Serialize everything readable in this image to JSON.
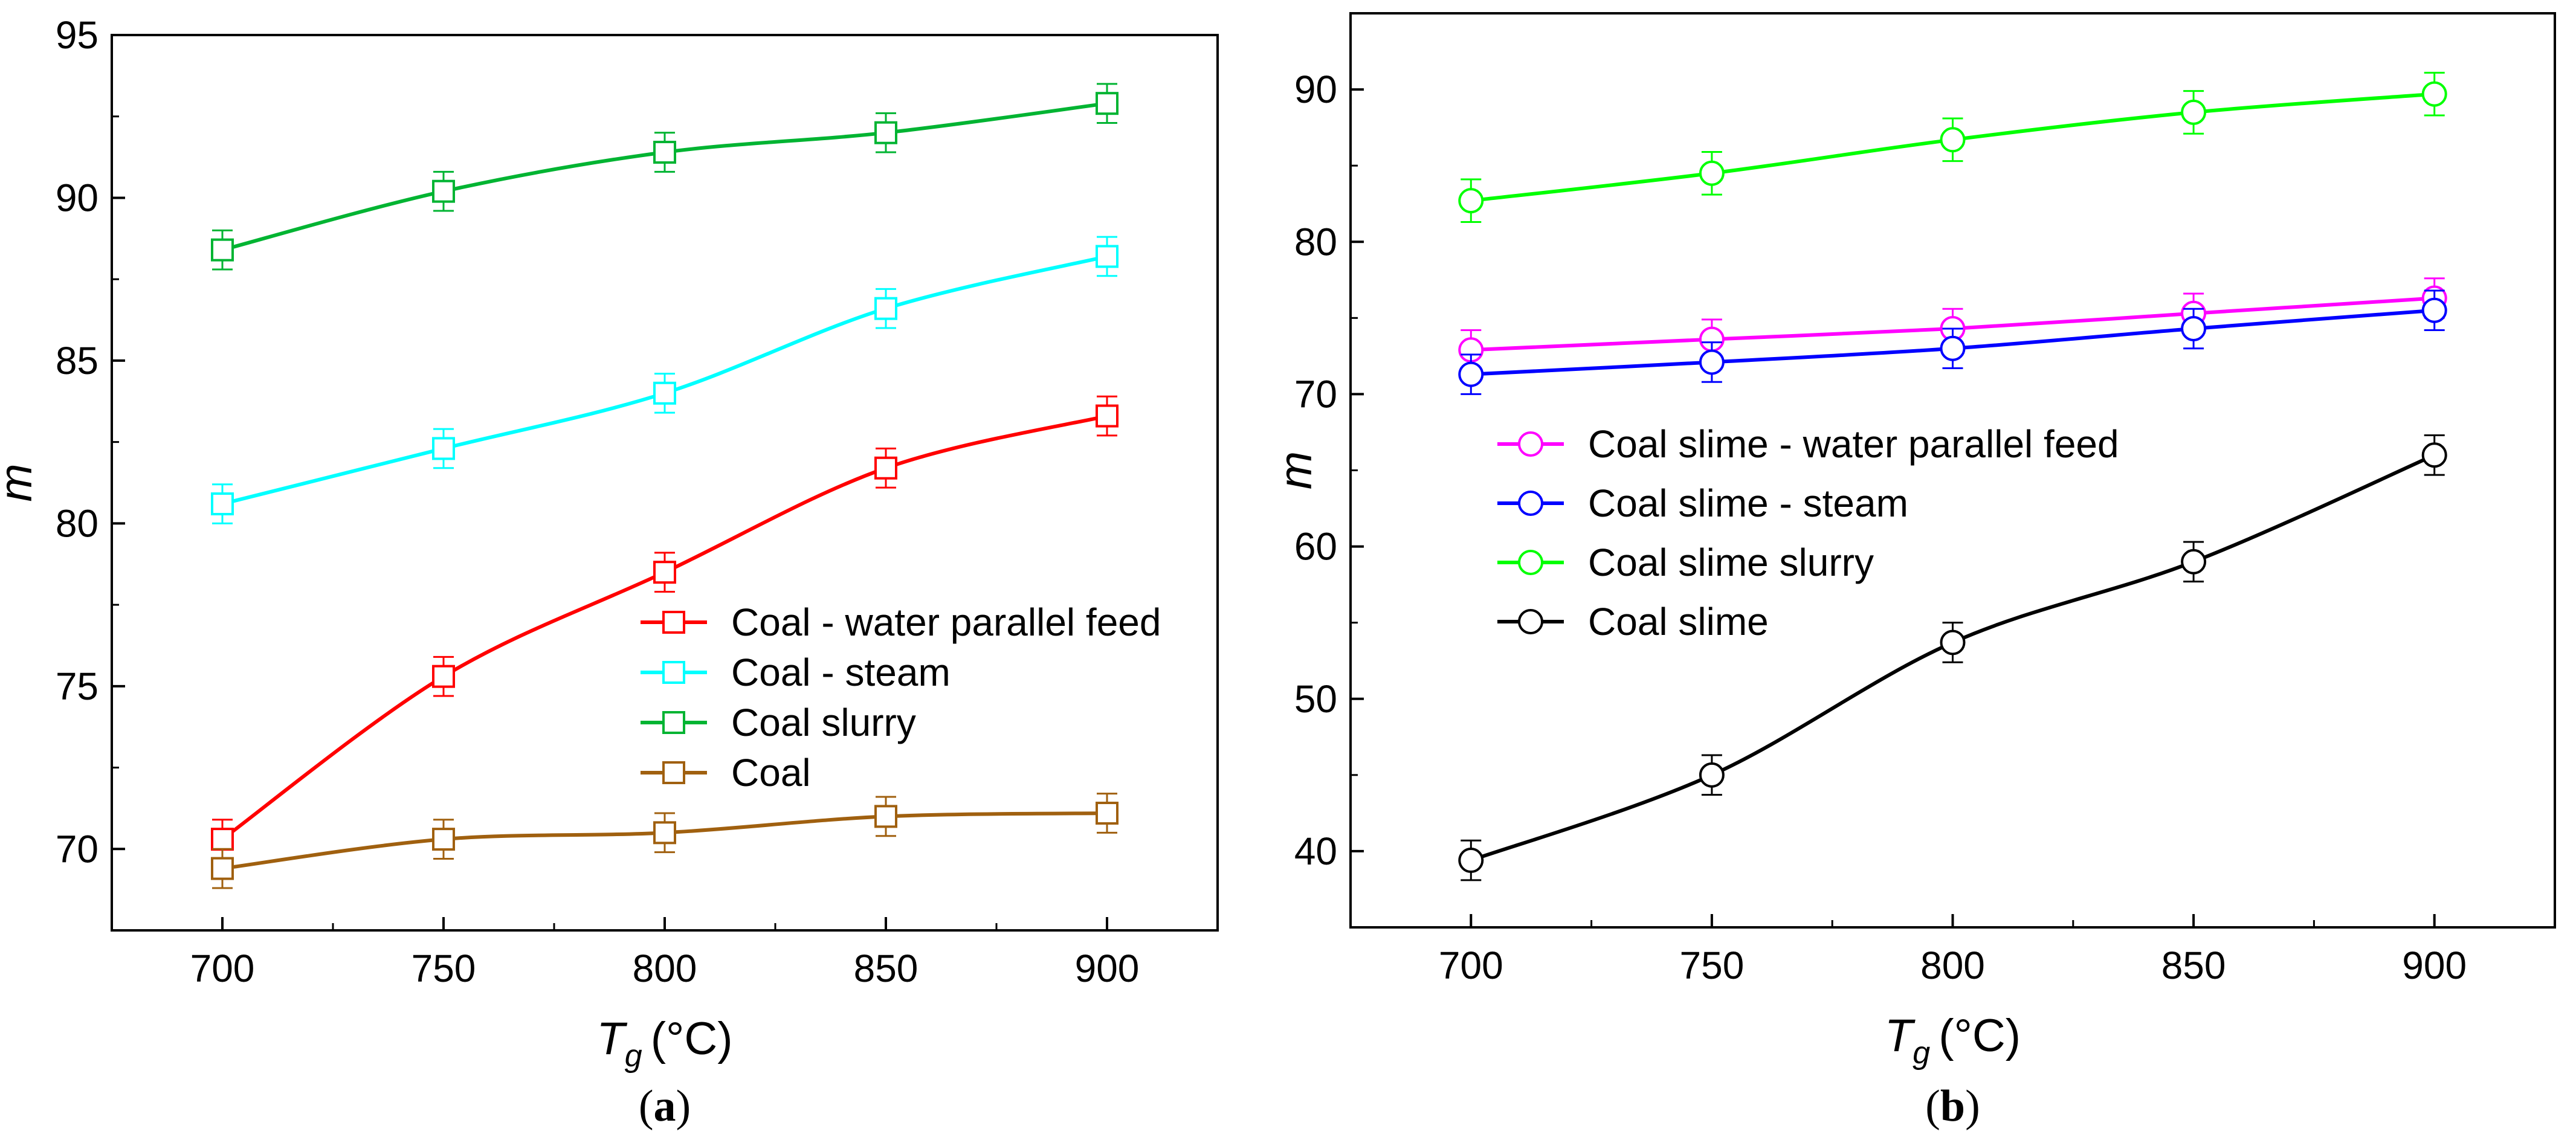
{
  "chart_data": [
    {
      "type": "line",
      "panel_label": "a",
      "xlabel": "T",
      "xlabel_sub": "g",
      "xlabel_unit": "(°C)",
      "ylabel": "m",
      "xlim": [
        675,
        925
      ],
      "ylim": [
        67.5,
        95
      ],
      "x_ticks": [
        700,
        750,
        800,
        850,
        900
      ],
      "y_ticks": [
        70,
        75,
        80,
        85,
        90,
        95
      ],
      "marker": "square",
      "legend_position": "center-right",
      "series": [
        {
          "name": "Coal - water parallel feed",
          "color": "#ff0000",
          "x": [
            700,
            750,
            800,
            850,
            900
          ],
          "values": [
            70.3,
            75.3,
            78.5,
            81.7,
            83.3
          ],
          "error": [
            0.6,
            0.6,
            0.6,
            0.6,
            0.6
          ]
        },
        {
          "name": "Coal - steam",
          "color": "#00ffff",
          "x": [
            700,
            750,
            800,
            850,
            900
          ],
          "values": [
            80.6,
            82.3,
            84.0,
            86.6,
            88.2
          ],
          "error": [
            0.6,
            0.6,
            0.6,
            0.6,
            0.6
          ]
        },
        {
          "name": "Coal slurry",
          "color": "#00b432",
          "x": [
            700,
            750,
            800,
            850,
            900
          ],
          "values": [
            88.4,
            90.2,
            91.4,
            92.0,
            92.9
          ],
          "error": [
            0.6,
            0.6,
            0.6,
            0.6,
            0.6
          ]
        },
        {
          "name": "Coal",
          "color": "#a0600f",
          "x": [
            700,
            750,
            800,
            850,
            900
          ],
          "values": [
            69.4,
            70.3,
            70.5,
            71.0,
            71.1
          ],
          "error": [
            0.6,
            0.6,
            0.6,
            0.6,
            0.6
          ]
        }
      ]
    },
    {
      "type": "line",
      "panel_label": "b",
      "xlabel": "T",
      "xlabel_sub": "g",
      "xlabel_unit": "(°C)",
      "ylabel": "m",
      "xlim": [
        675,
        925
      ],
      "ylim": [
        35,
        95
      ],
      "x_ticks": [
        700,
        750,
        800,
        850,
        900
      ],
      "y_ticks": [
        40,
        50,
        60,
        70,
        80,
        90
      ],
      "marker": "circle",
      "legend_position": "center-left",
      "series": [
        {
          "name": "Coal slime - water parallel feed",
          "color": "#ff00ff",
          "x": [
            700,
            750,
            800,
            850,
            900
          ],
          "values": [
            72.9,
            73.6,
            74.3,
            75.3,
            76.3
          ],
          "error": [
            1.3,
            1.3,
            1.3,
            1.3,
            1.3
          ]
        },
        {
          "name": "Coal slime - steam",
          "color": "#0000ff",
          "x": [
            700,
            750,
            800,
            850,
            900
          ],
          "values": [
            71.3,
            72.1,
            73.0,
            74.3,
            75.5
          ],
          "error": [
            1.3,
            1.3,
            1.3,
            1.3,
            1.3
          ]
        },
        {
          "name": "Coal slime slurry",
          "color": "#00ff00",
          "x": [
            700,
            750,
            800,
            850,
            900
          ],
          "values": [
            82.7,
            84.5,
            86.7,
            88.5,
            89.7
          ],
          "error": [
            1.4,
            1.4,
            1.4,
            1.4,
            1.4
          ]
        },
        {
          "name": "Coal slime",
          "color": "#000000",
          "x": [
            700,
            750,
            800,
            850,
            900
          ],
          "values": [
            39.4,
            45.0,
            53.7,
            59.0,
            66.0
          ],
          "error": [
            1.3,
            1.3,
            1.3,
            1.3,
            1.3
          ]
        }
      ]
    }
  ]
}
